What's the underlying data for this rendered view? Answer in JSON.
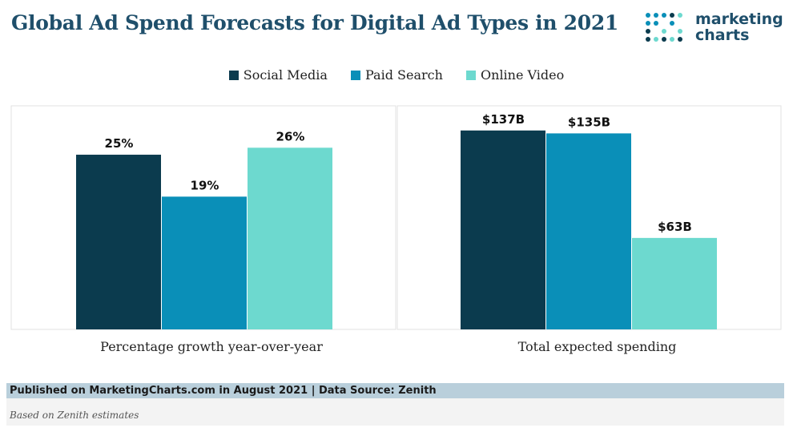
{
  "chart_data": {
    "type": "bar",
    "title": "Global Ad Spend Forecasts for Digital Ad Types in 2021",
    "series": [
      {
        "name": "Social Media",
        "color": "#0b3b4e"
      },
      {
        "name": "Paid Search",
        "color": "#0a8fb8"
      },
      {
        "name": "Online Video",
        "color": "#6dd9cf"
      }
    ],
    "panels": [
      {
        "xlabel": "Percentage growth year-over-year",
        "values": [
          25,
          19,
          26
        ],
        "labels": [
          "25%",
          "19%",
          "26%"
        ],
        "ylim": [
          0,
          32
        ]
      },
      {
        "xlabel": "Total expected spending",
        "values": [
          137,
          135,
          63
        ],
        "labels": [
          "$137B",
          "$135B",
          "$63B"
        ],
        "ylim": [
          0,
          154
        ]
      }
    ],
    "legend_position": "top-center",
    "grid": false
  },
  "logo": {
    "line1": "marketing",
    "line2": "charts"
  },
  "footer": {
    "source": "Published on MarketingCharts.com in August 2021 | Data Source: Zenith",
    "note": "Based on Zenith estimates"
  },
  "colors": {
    "title": "#1f4f6b",
    "footer_band": "#b9cfdb",
    "panel_border": "#e2e2e2"
  }
}
